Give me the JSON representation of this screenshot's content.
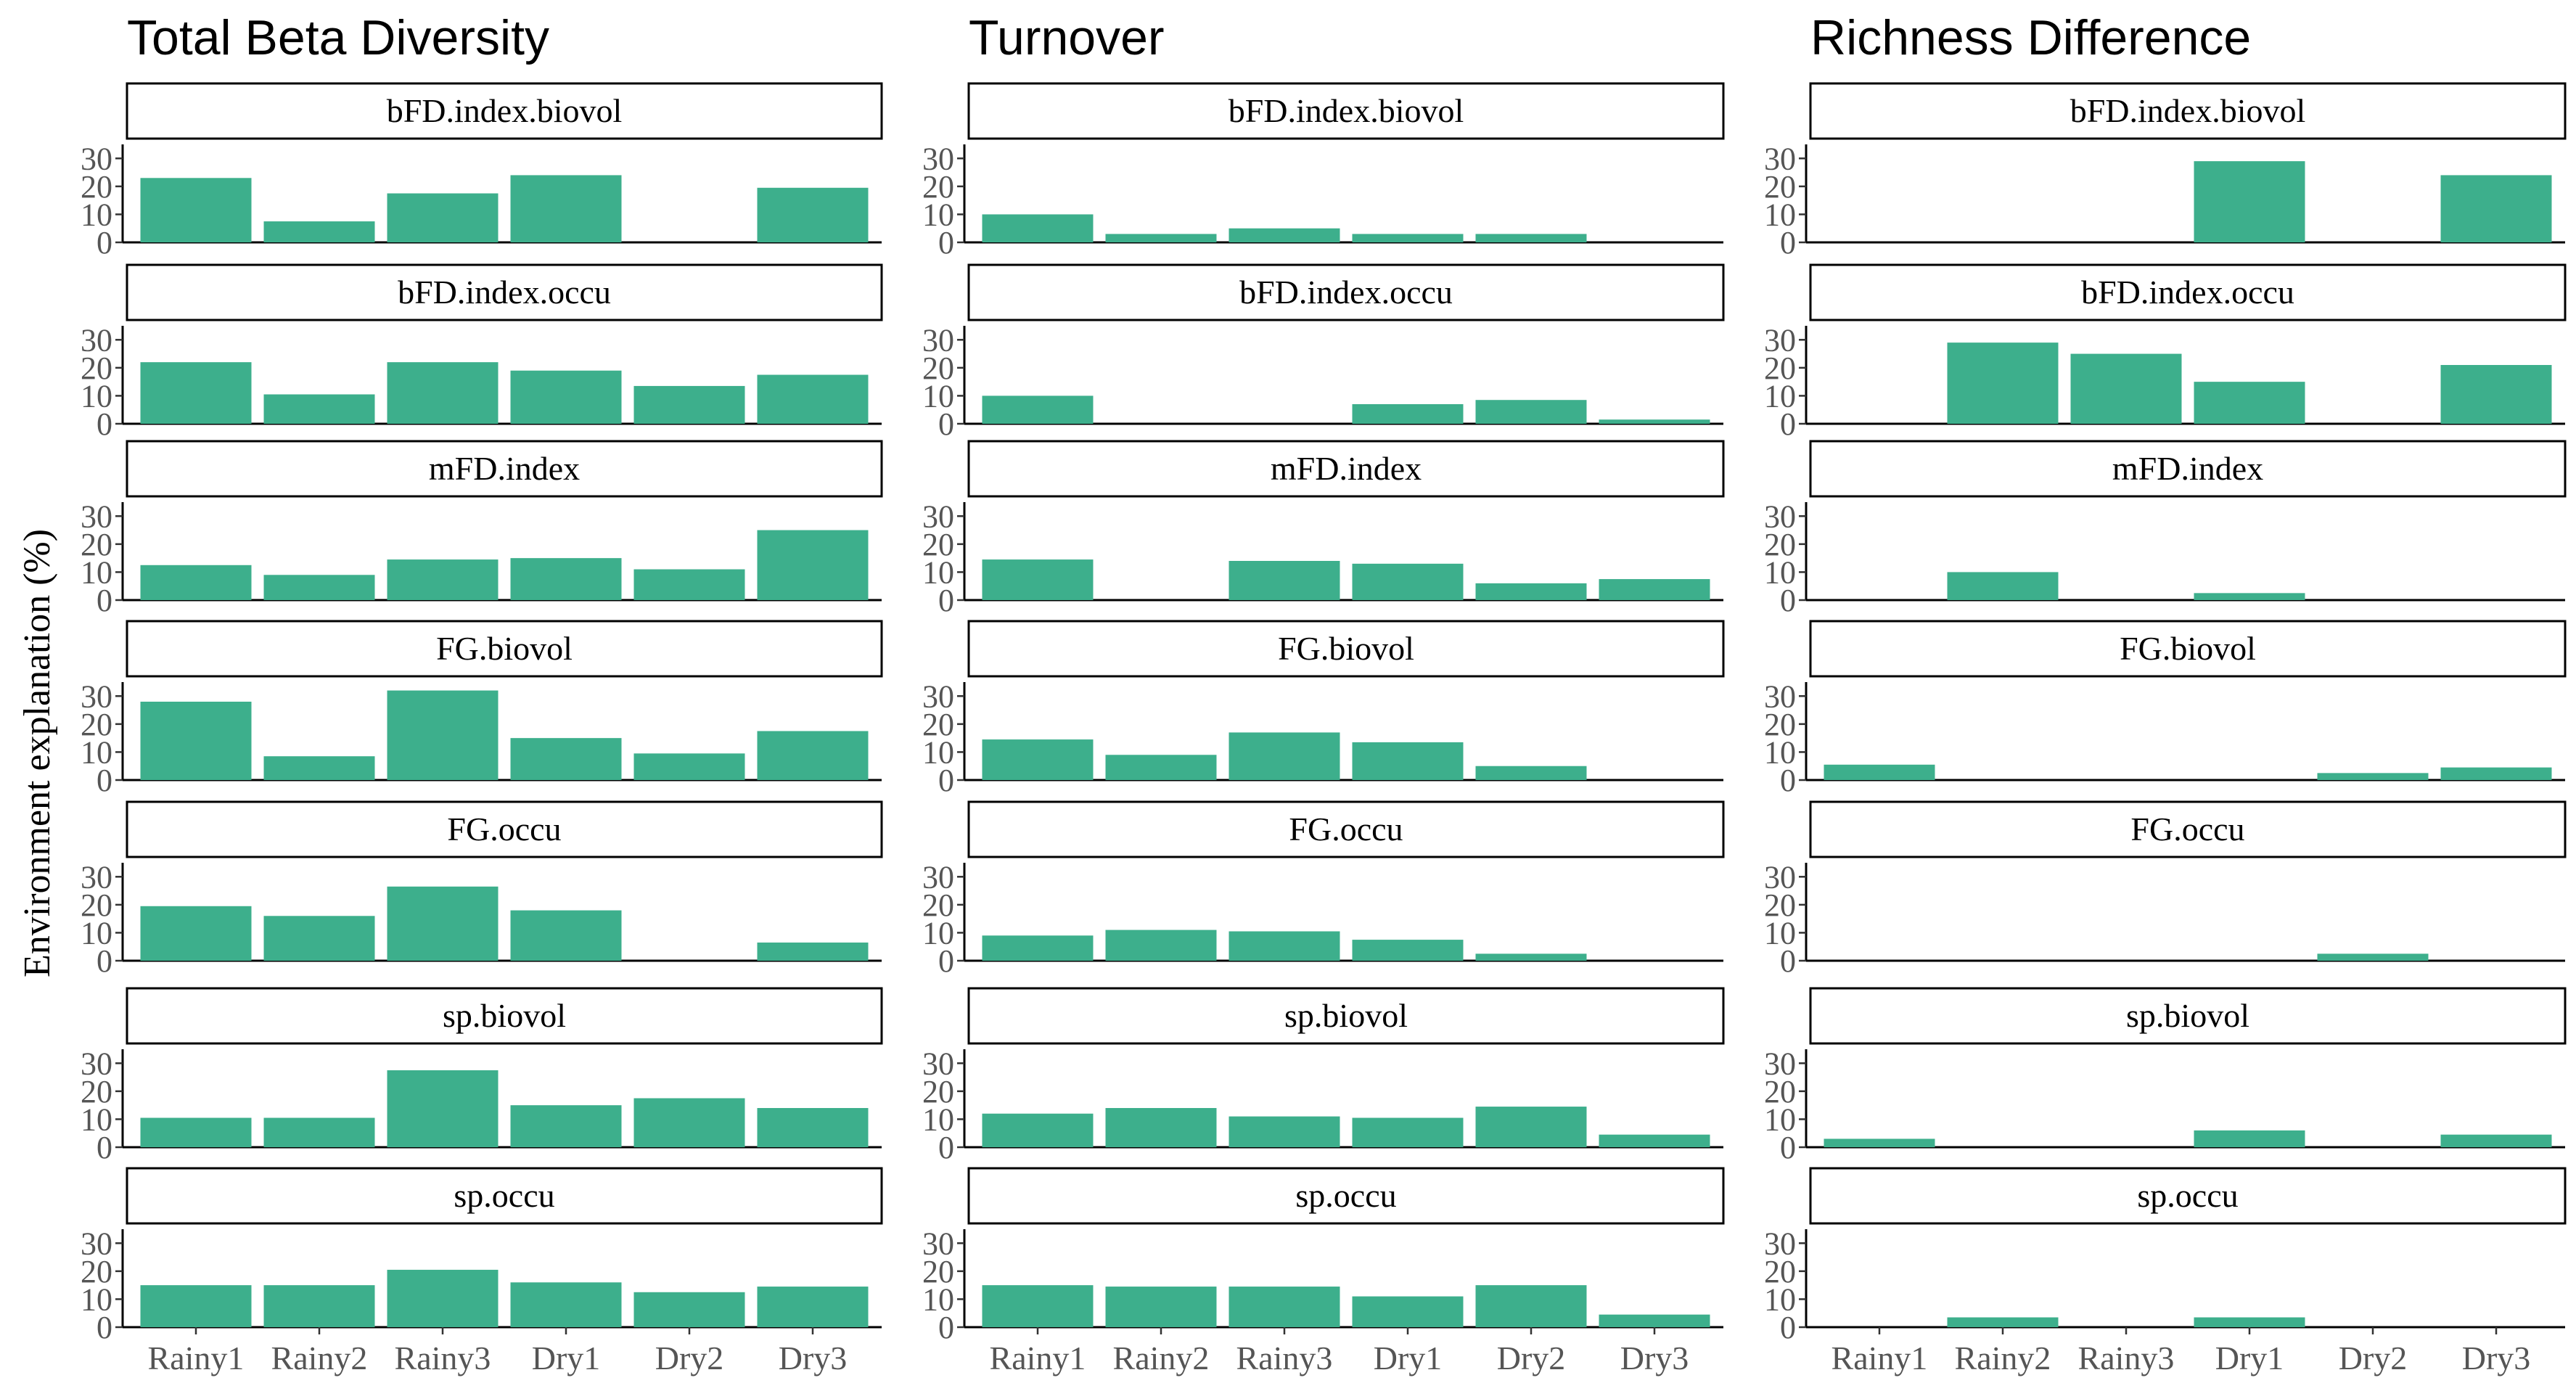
{
  "chart_data": {
    "type": "bar",
    "ylabel": "Environment explanation (%)",
    "categories": [
      "Rainy1",
      "Rainy2",
      "Rainy3",
      "Dry1",
      "Dry2",
      "Dry3"
    ],
    "yticks": [
      0,
      10,
      20,
      30
    ],
    "ylim": [
      0,
      35
    ],
    "bar_color": "#3daf8c",
    "panels": [
      "bFD.index.biovol",
      "bFD.index.occu",
      "mFD.index",
      "FG.biovol",
      "FG.occu",
      "sp.biovol",
      "sp.occu"
    ],
    "columns": [
      {
        "title": "Total Beta Diversity",
        "series": [
          {
            "panel": "bFD.index.biovol",
            "values": [
              23,
              7.5,
              17.5,
              24,
              0,
              19.5
            ]
          },
          {
            "panel": "bFD.index.occu",
            "values": [
              22,
              10.5,
              22,
              19,
              13.5,
              17.5
            ]
          },
          {
            "panel": "mFD.index",
            "values": [
              12.5,
              9,
              14.5,
              15,
              11,
              25
            ]
          },
          {
            "panel": "FG.biovol",
            "values": [
              28,
              8.5,
              32,
              15,
              9.5,
              17.5
            ]
          },
          {
            "panel": "FG.occu",
            "values": [
              19.5,
              16,
              26.5,
              18,
              0,
              6.5
            ]
          },
          {
            "panel": "sp.biovol",
            "values": [
              10.5,
              10.5,
              27.5,
              15,
              17.5,
              14
            ]
          },
          {
            "panel": "sp.occu",
            "values": [
              15,
              15,
              20.5,
              16,
              12.5,
              14.5
            ]
          }
        ]
      },
      {
        "title": "Turnover",
        "series": [
          {
            "panel": "bFD.index.biovol",
            "values": [
              10,
              3,
              5,
              3,
              3,
              0
            ]
          },
          {
            "panel": "bFD.index.occu",
            "values": [
              10,
              0,
              0,
              7,
              8.5,
              1.5
            ]
          },
          {
            "panel": "mFD.index",
            "values": [
              14.5,
              0,
              14,
              13,
              6,
              7.5
            ]
          },
          {
            "panel": "FG.biovol",
            "values": [
              14.5,
              9,
              17,
              13.5,
              5,
              0
            ]
          },
          {
            "panel": "FG.occu",
            "values": [
              9,
              11,
              10.5,
              7.5,
              2.5,
              0
            ]
          },
          {
            "panel": "sp.biovol",
            "values": [
              12,
              14,
              11,
              10.5,
              14.5,
              4.5
            ]
          },
          {
            "panel": "sp.occu",
            "values": [
              15,
              14.5,
              14.5,
              11,
              15,
              4.5
            ]
          }
        ]
      },
      {
        "title": "Richness Difference",
        "series": [
          {
            "panel": "bFD.index.biovol",
            "values": [
              0,
              0,
              0,
              29,
              0,
              24
            ]
          },
          {
            "panel": "bFD.index.occu",
            "values": [
              0,
              29,
              25,
              15,
              0,
              21
            ]
          },
          {
            "panel": "mFD.index",
            "values": [
              0,
              10,
              0,
              2.5,
              0,
              0
            ]
          },
          {
            "panel": "FG.biovol",
            "values": [
              5.5,
              0,
              0,
              0,
              2.5,
              4.5
            ]
          },
          {
            "panel": "FG.occu",
            "values": [
              0,
              0,
              0,
              0,
              2.5,
              0
            ]
          },
          {
            "panel": "sp.biovol",
            "values": [
              3,
              0,
              0,
              6,
              0,
              4.5
            ]
          },
          {
            "panel": "sp.occu",
            "values": [
              0,
              3.5,
              0,
              3.5,
              0,
              0
            ]
          }
        ]
      }
    ]
  }
}
